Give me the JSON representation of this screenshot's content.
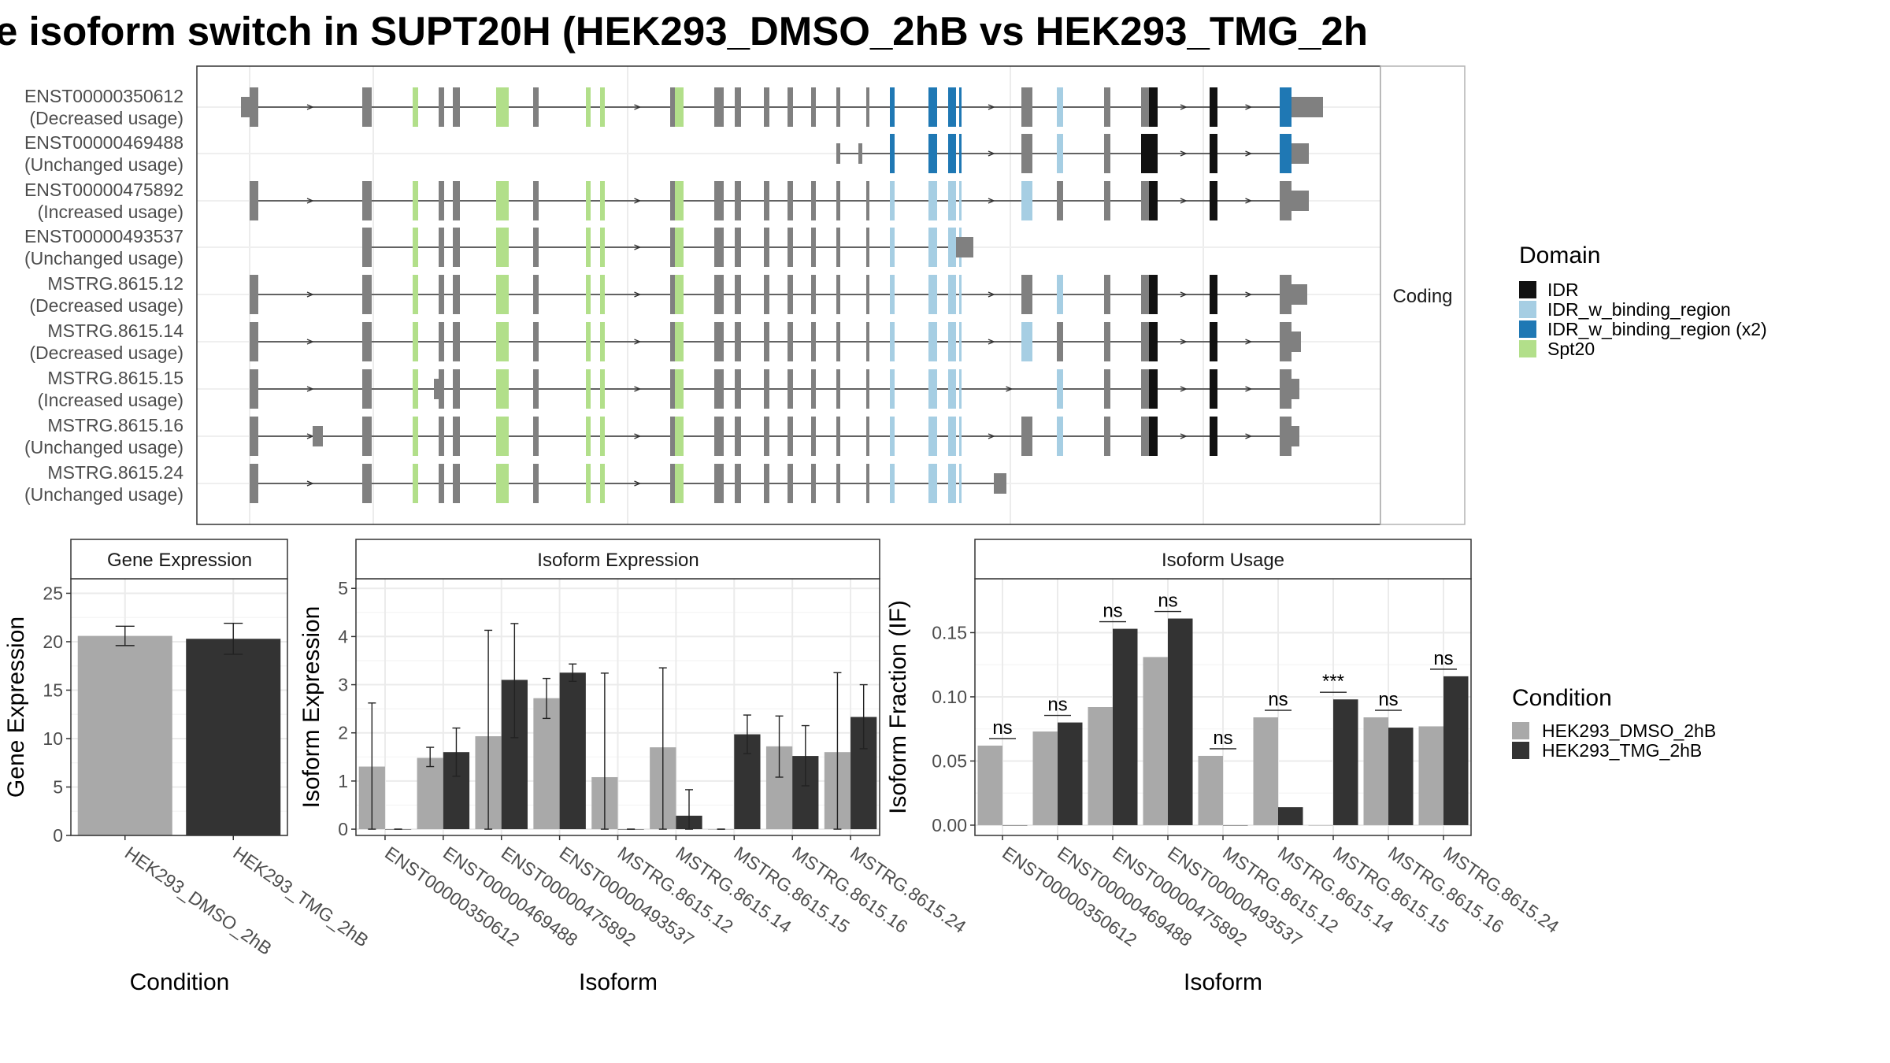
{
  "title": "e isoform switch in SUPT20H (HEK293_DMSO_2hB vs HEK293_TMG_2h",
  "colors": {
    "exon": "#808080",
    "IDR": "#111111",
    "IDR_w_binding_region": "#a6cee3",
    "IDR_w_binding_region (x2)": "#1f78b4",
    "Spt20": "#b2df8a",
    "HEK293_DMSO_2hB": "#a9a9a9",
    "HEK293_TMG_2hB": "#333333"
  },
  "structure": {
    "strip_label": "Coding",
    "transcripts": [
      {
        "id": "ENST00000350612",
        "usage": "(Decreased usage)"
      },
      {
        "id": "ENST00000469488",
        "usage": "(Unchanged usage)"
      },
      {
        "id": "ENST00000475892",
        "usage": "(Increased usage)"
      },
      {
        "id": "ENST00000493537",
        "usage": "(Unchanged usage)"
      },
      {
        "id": "MSTRG.8615.12",
        "usage": "(Decreased usage)"
      },
      {
        "id": "MSTRG.8615.14",
        "usage": "(Decreased usage)"
      },
      {
        "id": "MSTRG.8615.15",
        "usage": "(Increased usage)"
      },
      {
        "id": "MSTRG.8615.16",
        "usage": "(Unchanged usage)"
      },
      {
        "id": "MSTRG.8615.24",
        "usage": "(Unchanged usage)"
      }
    ]
  },
  "legends": {
    "domain": {
      "title": "Domain",
      "items": [
        "IDR",
        "IDR_w_binding_region",
        "IDR_w_binding_region (x2)",
        "Spt20"
      ]
    },
    "condition": {
      "title": "Condition",
      "items": [
        "HEK293_DMSO_2hB",
        "HEK293_TMG_2hB"
      ]
    }
  },
  "chart_data": [
    {
      "type": "bar",
      "title": "Gene Expression",
      "xlabel": "Condition",
      "ylabel": "Gene Expression",
      "categories": [
        "HEK293_DMSO_2hB",
        "HEK293_TMG_2hB"
      ],
      "values": [
        20.6,
        20.3
      ],
      "error": [
        [
          19.6,
          21.6
        ],
        [
          18.7,
          21.9
        ]
      ],
      "ylim": [
        0,
        26.5
      ],
      "yticks": [
        0,
        5,
        10,
        15,
        20,
        25
      ],
      "grid": true
    },
    {
      "type": "bar",
      "title": "Isoform Expression",
      "xlabel": "Isoform",
      "ylabel": "Isoform Expression",
      "categories": [
        "ENST00000350612",
        "ENST00000469488",
        "ENST00000475892",
        "ENST00000493537",
        "MSTRG.8615.12",
        "MSTRG.8615.14",
        "MSTRG.8615.15",
        "MSTRG.8615.16",
        "MSTRG.8615.24"
      ],
      "series": [
        {
          "name": "HEK293_DMSO_2hB",
          "values": [
            1.3,
            1.48,
            1.93,
            2.72,
            1.08,
            1.7,
            0,
            1.72,
            1.6
          ],
          "error": [
            [
              0,
              2.62
            ],
            [
              1.3,
              1.7
            ],
            [
              0,
              4.13
            ],
            [
              2.3,
              3.13
            ],
            [
              0,
              3.24
            ],
            [
              0,
              3.35
            ],
            [
              0,
              0
            ],
            [
              1.08,
              2.35
            ],
            [
              0,
              3.25
            ]
          ]
        },
        {
          "name": "HEK293_TMG_2hB",
          "values": [
            0,
            1.6,
            3.1,
            3.25,
            0,
            0.28,
            1.97,
            1.52,
            2.33
          ],
          "error": [
            [
              0,
              0
            ],
            [
              1.1,
              2.1
            ],
            [
              1.9,
              4.27
            ],
            [
              3.07,
              3.43
            ],
            [
              0,
              0
            ],
            [
              0,
              0.82
            ],
            [
              1.57,
              2.37
            ],
            [
              0.9,
              2.15
            ],
            [
              1.67,
              3.0
            ]
          ]
        }
      ],
      "ylim": [
        -0.13,
        5.2
      ],
      "yticks": [
        0,
        1,
        2,
        3,
        4,
        5
      ],
      "grid": true
    },
    {
      "type": "bar",
      "title": "Isoform Usage",
      "xlabel": "Isoform",
      "ylabel": "Isoform Fraction (IF)",
      "categories": [
        "ENST00000350612",
        "ENST00000469488",
        "ENST00000475892",
        "ENST00000493537",
        "MSTRG.8615.12",
        "MSTRG.8615.14",
        "MSTRG.8615.15",
        "MSTRG.8615.16",
        "MSTRG.8615.24"
      ],
      "series": [
        {
          "name": "HEK293_DMSO_2hB",
          "values": [
            0.062,
            0.073,
            0.092,
            0.131,
            0.054,
            0.084,
            0,
            0.084,
            0.077
          ]
        },
        {
          "name": "HEK293_TMG_2hB",
          "values": [
            0,
            0.08,
            0.153,
            0.161,
            0,
            0.014,
            0.098,
            0.076,
            0.116
          ]
        }
      ],
      "significance": [
        "ns",
        "ns",
        "ns",
        "ns",
        "ns",
        "ns",
        "***",
        "ns",
        "ns"
      ],
      "ylim": [
        -0.008,
        0.192
      ],
      "yticks": [
        0.0,
        0.05,
        0.1,
        0.15
      ],
      "yticklabels": [
        "0.00",
        "0.05",
        "0.10",
        "0.15"
      ],
      "grid": true
    }
  ]
}
